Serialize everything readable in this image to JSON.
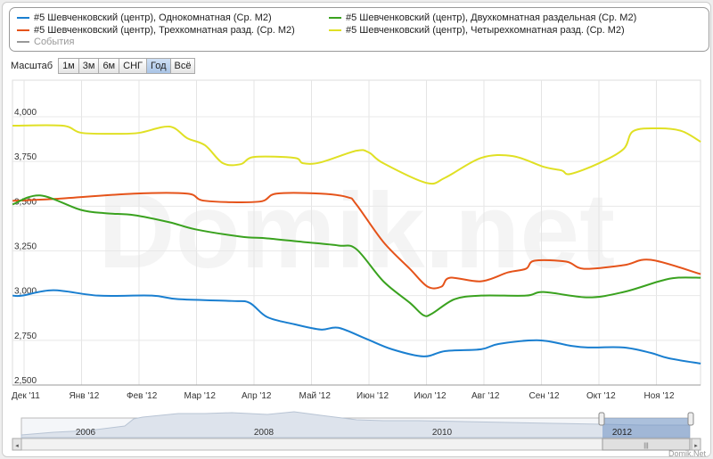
{
  "legend": [
    {
      "label": "#5 Шевченковский (центр), Однокомнатная (Ср. М2)",
      "color": "#1a7fd0"
    },
    {
      "label": "#5 Шевченковский (центр), Двухкомнатная раздельная (Ср. М2)",
      "color": "#3aa21f"
    },
    {
      "label": "#5 Шевченковский (центр), Трехкомнатная разд. (Ср. М2)",
      "color": "#e5531a"
    },
    {
      "label": "#5 Шевченковский (центр), Четырехкомнатная разд. (Ср. М2)",
      "color": "#e0e024"
    },
    {
      "label": "События",
      "color": "#999999"
    }
  ],
  "zoom": {
    "label": "Масштаб",
    "buttons": [
      "1м",
      "3м",
      "6м",
      "СНГ",
      "Год",
      "Всё"
    ],
    "active": "Год"
  },
  "watermark": "Domik.net",
  "credit": "Domik.Net",
  "navigator": {
    "years": [
      "2006",
      "2008",
      "2010",
      "2012"
    ],
    "selected_year": "2012"
  },
  "chart_data": {
    "type": "line",
    "x_unit": "months since Dec 2011",
    "x_tick_labels": [
      "Дек '11",
      "Янв '12",
      "Фев '12",
      "Мар '12",
      "Апр '12",
      "Май '12",
      "Июн '12",
      "Июл '12",
      "Авг '12",
      "Сен '12",
      "Окт '12",
      "Ноя '12"
    ],
    "y_tick_labels": [
      "2,500",
      "2,750",
      "3,000",
      "3,250",
      "3,500",
      "3,750",
      "4,000"
    ],
    "y_ticks": [
      2500,
      2750,
      3000,
      3250,
      3500,
      3750,
      4000
    ],
    "xlim": [
      -0.2,
      11.77
    ],
    "ylim": [
      2500,
      4200
    ],
    "series": [
      {
        "name": "#5 Шевченковский (центр), Четырехкомнатная разд. (Ср. М2)",
        "color": "#e0e024",
        "x": [
          -0.2,
          0.67,
          1,
          1.6,
          2,
          2.53,
          2.84,
          3.15,
          3.46,
          3.77,
          4,
          4.7,
          4.85,
          5.16,
          5.78,
          6,
          6.25,
          7,
          7.33,
          7.95,
          8.5,
          9.04,
          9.35,
          9.5,
          10,
          10.43,
          10.6,
          11.05,
          11.44,
          11.77
        ],
        "y": [
          3950,
          3950,
          3910,
          3905,
          3910,
          3945,
          3880,
          3840,
          3740,
          3735,
          3775,
          3770,
          3740,
          3745,
          3810,
          3800,
          3740,
          3630,
          3660,
          3770,
          3780,
          3720,
          3700,
          3680,
          3740,
          3820,
          3920,
          3935,
          3920,
          3860
        ]
      },
      {
        "name": "#5 Шевченковский (центр), Трехкомнатная разд. (Ср. М2)",
        "color": "#e5531a",
        "x": [
          -0.2,
          0.51,
          1.91,
          2.84,
          3.15,
          4.08,
          4.39,
          5.16,
          5.63,
          5.78,
          6.25,
          6.71,
          7.02,
          7.26,
          7.41,
          7.95,
          8.42,
          8.73,
          8.88,
          9.43,
          9.74,
          10.43,
          10.9,
          11.77
        ],
        "y": [
          3530,
          3540,
          3570,
          3570,
          3530,
          3525,
          3570,
          3570,
          3550,
          3510,
          3300,
          3150,
          3050,
          3050,
          3100,
          3080,
          3130,
          3150,
          3195,
          3190,
          3150,
          3170,
          3200,
          3120
        ]
      },
      {
        "name": "#5 Шевченковский (центр), Двухкомнатная раздельная (Ср. М2)",
        "color": "#3aa21f",
        "x": [
          -0.2,
          0.28,
          0.98,
          1.44,
          1.91,
          2.53,
          2.99,
          3.77,
          4.23,
          4.85,
          5.47,
          5.78,
          6.25,
          6.71,
          6.95,
          7.1,
          7.49,
          7.95,
          8.73,
          9.04,
          9.81,
          10.43,
          11.05,
          11.36,
          11.77
        ],
        "y": [
          3510,
          3560,
          3480,
          3460,
          3450,
          3410,
          3370,
          3330,
          3320,
          3300,
          3280,
          3260,
          3080,
          2960,
          2890,
          2900,
          2980,
          3000,
          3000,
          3020,
          2990,
          3020,
          3080,
          3100,
          3100
        ]
      },
      {
        "name": "#5 Шевченковский (центр), Однокомнатная (Ср. М2)",
        "color": "#1a7fd0",
        "x": [
          -0.2,
          -0.03,
          0.51,
          1.29,
          2.22,
          2.68,
          3.61,
          3.92,
          4.23,
          4.7,
          5.16,
          5.47,
          5.94,
          6.4,
          6.95,
          7.33,
          7.95,
          8.26,
          8.96,
          9.5,
          9.81,
          10.43,
          10.9,
          11.21,
          11.77
        ],
        "y": [
          3000,
          3000,
          3030,
          3000,
          3000,
          2980,
          2970,
          2960,
          2880,
          2840,
          2810,
          2820,
          2760,
          2700,
          2660,
          2690,
          2700,
          2730,
          2750,
          2720,
          2710,
          2710,
          2680,
          2650,
          2620
        ]
      }
    ]
  }
}
